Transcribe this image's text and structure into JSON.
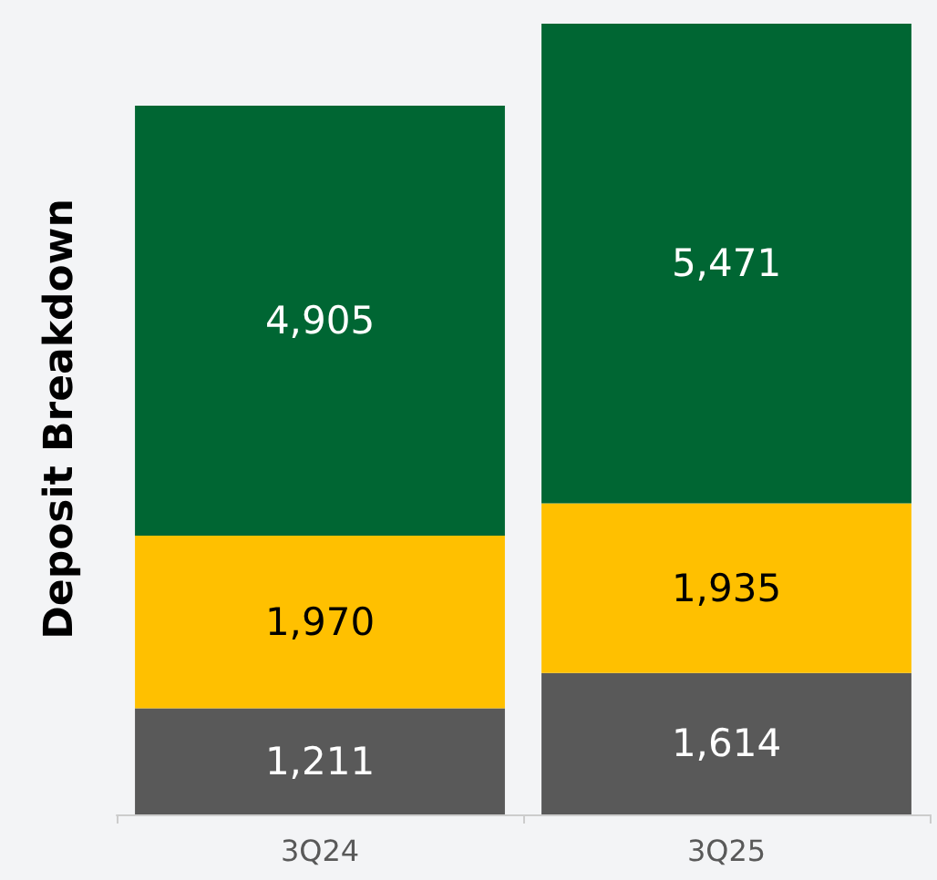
{
  "chart_data": {
    "type": "bar",
    "stacked": true,
    "ylabel": "Deposit Breakdown",
    "categories": [
      "3Q24",
      "3Q25"
    ],
    "series": [
      {
        "color": "#595959",
        "values": [
          1211,
          1614
        ],
        "value_labels": [
          "1,211",
          "1,614"
        ]
      },
      {
        "color": "#ffc000",
        "values": [
          1970,
          1935
        ],
        "value_labels": [
          "1,970",
          "1,935"
        ]
      },
      {
        "color": "#006633",
        "values": [
          4905,
          5471
        ],
        "value_labels": [
          "4,905",
          "5,471"
        ]
      }
    ],
    "grid": false
  }
}
